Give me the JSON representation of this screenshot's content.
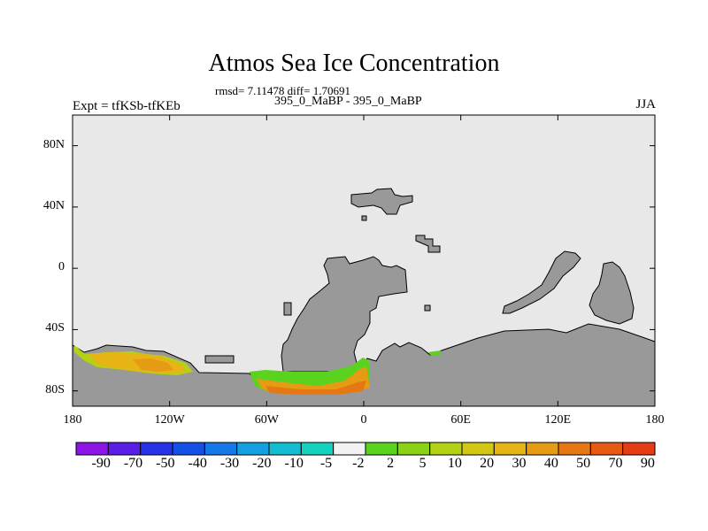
{
  "plot": {
    "title": "Atmos Sea Ice Concentration",
    "stats": "rmsd= 7.11478 diff= 1.70691",
    "subtitle": "395_0_MaBP - 395_0_MaBP",
    "left_label": "Expt = tfKSb-tfKEb",
    "right_label": "JJA"
  },
  "colors": {
    "ocean": "#e8e8e8",
    "land": "#999999",
    "frame": "#000000"
  },
  "map": {
    "lat_ticks": [
      {
        "value": 80,
        "label": "80N"
      },
      {
        "value": 40,
        "label": "40N"
      },
      {
        "value": 0,
        "label": "0"
      },
      {
        "value": -40,
        "label": "40S"
      },
      {
        "value": -80,
        "label": "80S"
      }
    ],
    "lon_ticks": [
      {
        "value": -180,
        "label": "180"
      },
      {
        "value": -120,
        "label": "120W"
      },
      {
        "value": -60,
        "label": "60W"
      },
      {
        "value": 0,
        "label": "0"
      },
      {
        "value": 60,
        "label": "60E"
      },
      {
        "value": 120,
        "label": "120E"
      },
      {
        "value": 180,
        "label": "180"
      }
    ]
  },
  "colorbar": {
    "labels": [
      "-90",
      "-70",
      "-50",
      "-40",
      "-30",
      "-20",
      "-10",
      "-5",
      "-2",
      "2",
      "5",
      "10",
      "20",
      "30",
      "40",
      "50",
      "70",
      "90"
    ],
    "colors": [
      "#8c14e6",
      "#5a1ee6",
      "#2832e6",
      "#1450e6",
      "#1478e6",
      "#14a0e0",
      "#14bed2",
      "#14d2be",
      "#f2f2f2",
      "#5ad21e",
      "#8cd214",
      "#b4d214",
      "#d2c814",
      "#e6b414",
      "#e69b14",
      "#e67814",
      "#e65a14",
      "#e63c14"
    ]
  }
}
